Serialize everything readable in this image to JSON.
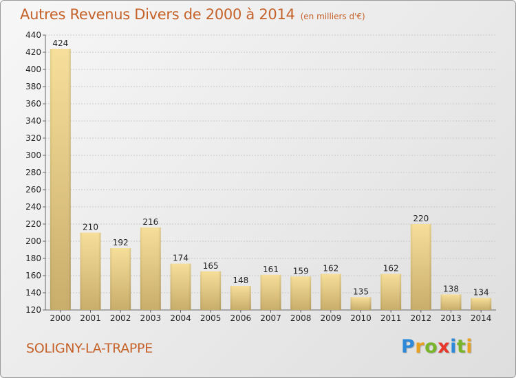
{
  "header": {
    "title": "Autres Revenus Divers de 2000 à 2014",
    "subtitle": "(en milliers d'€)"
  },
  "footer": {
    "commune": "SOLIGNY-LA-TRAPPE",
    "logo": {
      "letters": [
        "P",
        "r",
        "o",
        "x",
        "i",
        "t",
        "i"
      ],
      "colors": [
        "#2e8ad8",
        "#e8a020",
        "#79b52a",
        "#e8372a",
        "#2e8ad8",
        "#79b52a",
        "#e8a020"
      ]
    }
  },
  "colors": {
    "title": "#c5622a",
    "bar_light": "#f6df9a",
    "bar_dark": "#c9ad6a",
    "grid": "#c8c8c8"
  },
  "chart_data": {
    "type": "bar",
    "title": "Autres Revenus Divers de 2000 à 2014",
    "subtitle": "(en milliers d'€)",
    "categories": [
      "2000",
      "2001",
      "2002",
      "2003",
      "2004",
      "2005",
      "2006",
      "2007",
      "2008",
      "2009",
      "2010",
      "2011",
      "2012",
      "2013",
      "2014"
    ],
    "values": [
      424,
      210,
      192,
      216,
      174,
      165,
      148,
      161,
      159,
      162,
      135,
      162,
      220,
      138,
      134
    ],
    "ylim": [
      120,
      440
    ],
    "yticks": [
      120,
      140,
      160,
      180,
      200,
      220,
      240,
      260,
      280,
      300,
      320,
      340,
      360,
      380,
      400,
      420,
      440
    ],
    "grid": true,
    "xlabel": "",
    "ylabel": ""
  }
}
